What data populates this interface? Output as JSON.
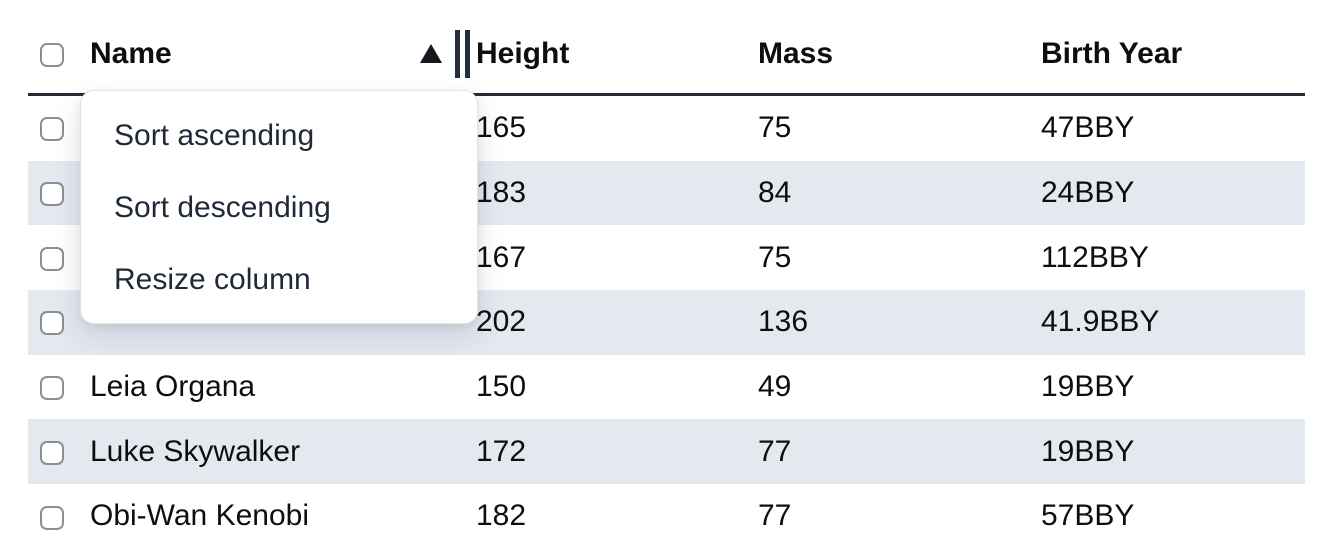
{
  "table": {
    "header": {
      "name": "Name",
      "height": "Height",
      "mass": "Mass",
      "birth_year": "Birth Year"
    },
    "sort_state": "ascending",
    "rows": [
      {
        "name": "",
        "height": "165",
        "mass": "75",
        "birth_year": "47BBY"
      },
      {
        "name": "",
        "height": "183",
        "mass": "84",
        "birth_year": "24BBY"
      },
      {
        "name": "",
        "height": "167",
        "mass": "75",
        "birth_year": "112BBY"
      },
      {
        "name": "",
        "height": "202",
        "mass": "136",
        "birth_year": "41.9BBY"
      },
      {
        "name": "Leia Organa",
        "height": "150",
        "mass": "49",
        "birth_year": "19BBY"
      },
      {
        "name": "Luke Skywalker",
        "height": "172",
        "mass": "77",
        "birth_year": "19BBY"
      },
      {
        "name": "Obi-Wan Kenobi",
        "height": "182",
        "mass": "77",
        "birth_year": "57BBY"
      }
    ]
  },
  "context_menu": {
    "items": [
      {
        "label": "Sort ascending"
      },
      {
        "label": "Sort descending"
      },
      {
        "label": "Resize column"
      }
    ]
  },
  "colors": {
    "stripe": "#e4e9f0",
    "header_border": "#212b3c",
    "menu_text": "#1f2937",
    "checkbox_border": "#8a8f97"
  }
}
